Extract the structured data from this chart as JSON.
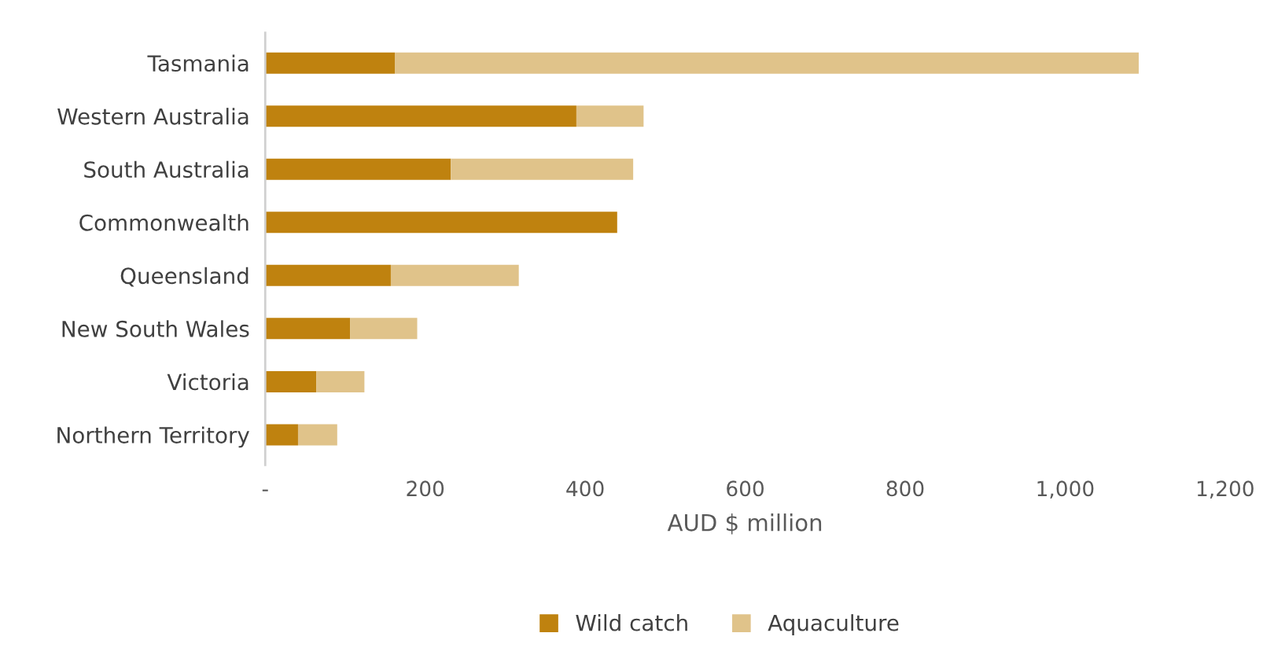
{
  "chart_data": {
    "type": "bar",
    "orientation": "horizontal",
    "stacked": true,
    "xlabel": "AUD $ million",
    "categories": [
      "Tasmania",
      "Western Australia",
      "South Australia",
      "Commonwealth",
      "Queensland",
      "New South Wales",
      "Victoria",
      "Northern Territory"
    ],
    "series": [
      {
        "name": "Wild catch",
        "color": "#bf820f",
        "values": [
          162,
          389,
          232,
          440,
          157,
          106,
          64,
          41
        ]
      },
      {
        "name": "Aquaculture",
        "color": "#e0c38a",
        "values": [
          930,
          84,
          228,
          0,
          160,
          84,
          60,
          49
        ]
      }
    ],
    "xlim": [
      0,
      1200
    ],
    "xticks": [
      {
        "value": 0,
        "label": "-"
      },
      200,
      400,
      600,
      800,
      {
        "value": 1000,
        "label": "1,000"
      },
      {
        "value": 1200,
        "label": "1,200"
      }
    ],
    "grid": false,
    "legend": "bottom"
  }
}
